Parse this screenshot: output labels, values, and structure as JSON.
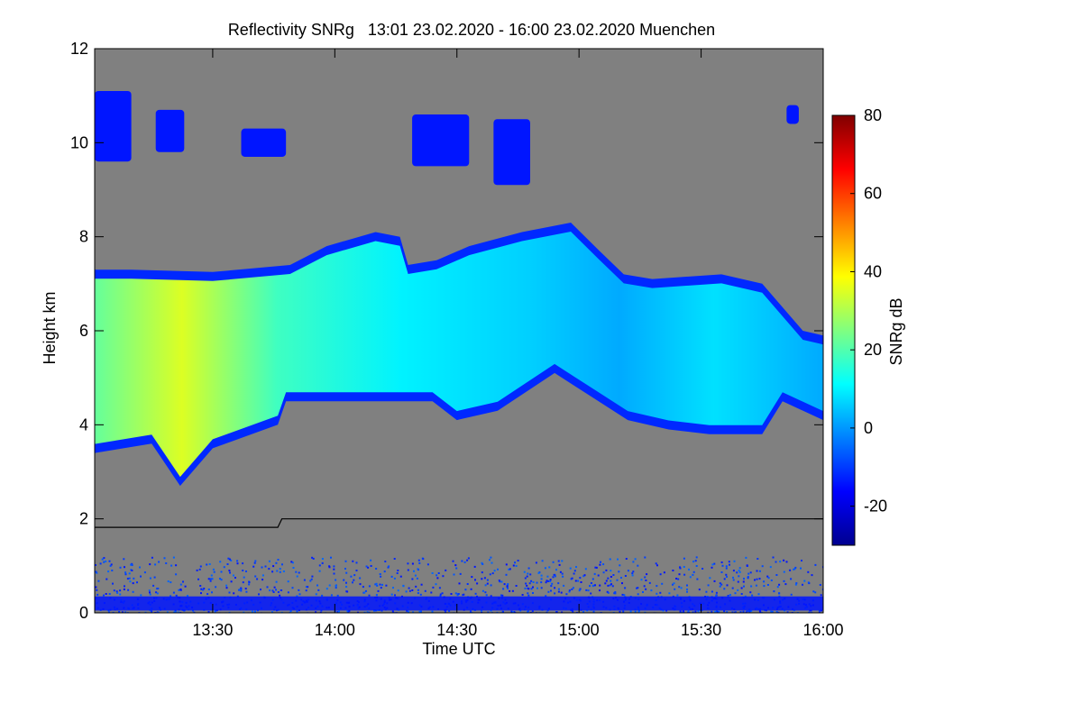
{
  "chart_data": {
    "type": "heatmap",
    "title": "Reflectivity SNRg   13:01 23.02.2020 - 16:00 23.02.2020 Muenchen",
    "xlabel": "Time UTC",
    "ylabel": "Height km",
    "x_range_minutes_utc": [
      781,
      960
    ],
    "y_range_km": [
      0,
      12
    ],
    "x_ticks": [
      {
        "label": "13:30",
        "minutes": 810
      },
      {
        "label": "14:00",
        "minutes": 840
      },
      {
        "label": "14:30",
        "minutes": 870
      },
      {
        "label": "15:00",
        "minutes": 900
      },
      {
        "label": "15:30",
        "minutes": 930
      },
      {
        "label": "16:00",
        "minutes": 960
      }
    ],
    "y_ticks": [
      0,
      2,
      4,
      6,
      8,
      10,
      12
    ],
    "colorbar": {
      "label": "SNRg dB",
      "range": [
        -30,
        80
      ],
      "ticks": [
        -20,
        0,
        20,
        40,
        60,
        80
      ],
      "colors": [
        "#00008f",
        "#0000ff",
        "#0080ff",
        "#00ffff",
        "#80ff80",
        "#ffff00",
        "#ff8000",
        "#ff0000",
        "#800000"
      ]
    },
    "background_color": "#808080",
    "cloud_layer": {
      "top_km": [
        {
          "minutes": 781,
          "km": 7.3
        },
        {
          "minutes": 790,
          "km": 7.3
        },
        {
          "minutes": 810,
          "km": 7.25
        },
        {
          "minutes": 829,
          "km": 7.4
        },
        {
          "minutes": 838,
          "km": 7.8
        },
        {
          "minutes": 850,
          "km": 8.1
        },
        {
          "minutes": 856,
          "km": 8.0
        },
        {
          "minutes": 858,
          "km": 7.4
        },
        {
          "minutes": 865,
          "km": 7.5
        },
        {
          "minutes": 873,
          "km": 7.8
        },
        {
          "minutes": 886,
          "km": 8.1
        },
        {
          "minutes": 898,
          "km": 8.3
        },
        {
          "minutes": 905,
          "km": 7.7
        },
        {
          "minutes": 911,
          "km": 7.2
        },
        {
          "minutes": 918,
          "km": 7.1
        },
        {
          "minutes": 935,
          "km": 7.2
        },
        {
          "minutes": 945,
          "km": 7.0
        },
        {
          "minutes": 955,
          "km": 6.0
        },
        {
          "minutes": 960,
          "km": 5.9
        }
      ],
      "base_km": [
        {
          "minutes": 781,
          "km": 3.4
        },
        {
          "minutes": 795,
          "km": 3.6
        },
        {
          "minutes": 802,
          "km": 2.7
        },
        {
          "minutes": 810,
          "km": 3.5
        },
        {
          "minutes": 826,
          "km": 4.0
        },
        {
          "minutes": 828,
          "km": 4.5
        },
        {
          "minutes": 850,
          "km": 4.5
        },
        {
          "minutes": 864,
          "km": 4.5
        },
        {
          "minutes": 870,
          "km": 4.1
        },
        {
          "minutes": 880,
          "km": 4.3
        },
        {
          "minutes": 894,
          "km": 5.1
        },
        {
          "minutes": 903,
          "km": 4.6
        },
        {
          "minutes": 912,
          "km": 4.1
        },
        {
          "minutes": 922,
          "km": 3.9
        },
        {
          "minutes": 932,
          "km": 3.8
        },
        {
          "minutes": 945,
          "km": 3.8
        },
        {
          "minutes": 950,
          "km": 4.5
        },
        {
          "minutes": 960,
          "km": 4.1
        }
      ],
      "peak_snr_db": 35
    },
    "cirrus_patches": [
      {
        "start_minutes": 781,
        "end_minutes": 790,
        "bottom_km": 9.6,
        "top_km": 11.1
      },
      {
        "start_minutes": 796,
        "end_minutes": 803,
        "bottom_km": 9.8,
        "top_km": 10.7
      },
      {
        "start_minutes": 817,
        "end_minutes": 828,
        "bottom_km": 9.7,
        "top_km": 10.3
      },
      {
        "start_minutes": 859,
        "end_minutes": 873,
        "bottom_km": 9.5,
        "top_km": 10.6
      },
      {
        "start_minutes": 879,
        "end_minutes": 888,
        "bottom_km": 9.1,
        "top_km": 10.5
      },
      {
        "start_minutes": 951,
        "end_minutes": 954,
        "bottom_km": 10.4,
        "top_km": 10.8
      }
    ],
    "boundary_line_km": [
      {
        "minutes": 781,
        "km": 1.82
      },
      {
        "minutes": 826,
        "km": 1.82
      },
      {
        "minutes": 827,
        "km": 2.0
      },
      {
        "minutes": 960,
        "km": 2.0
      }
    ],
    "surface_clutter_top_km": 1.2
  }
}
